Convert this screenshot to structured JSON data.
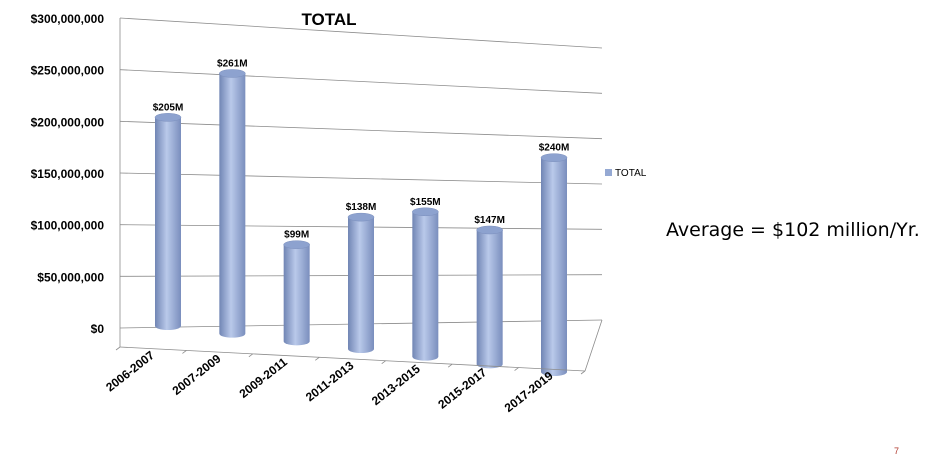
{
  "chart_data": {
    "type": "bar",
    "title": "TOTAL",
    "categories": [
      "2006-2007",
      "2007-2009",
      "2009-2011",
      "2011-2013",
      "2013-2015",
      "2015-2017",
      "2017-2019"
    ],
    "series": [
      {
        "name": "TOTAL",
        "values": [
          205000000,
          261000000,
          99000000,
          138000000,
          155000000,
          147000000,
          240000000
        ],
        "labels": [
          "$205M",
          "$261M",
          "$99M",
          "$138M",
          "$155M",
          "$147M",
          "$240M"
        ]
      }
    ],
    "ylim": [
      0,
      300000000
    ],
    "yticks": [
      "$0",
      "$50,000,000",
      "$100,000,000",
      "$150,000,000",
      "$200,000,000",
      "$250,000,000",
      "$300,000,000"
    ],
    "grid": true,
    "legend": "right",
    "bar_color": "#95a9d3"
  },
  "annotation": "Average = $102 million/Yr.",
  "page_number": "7"
}
